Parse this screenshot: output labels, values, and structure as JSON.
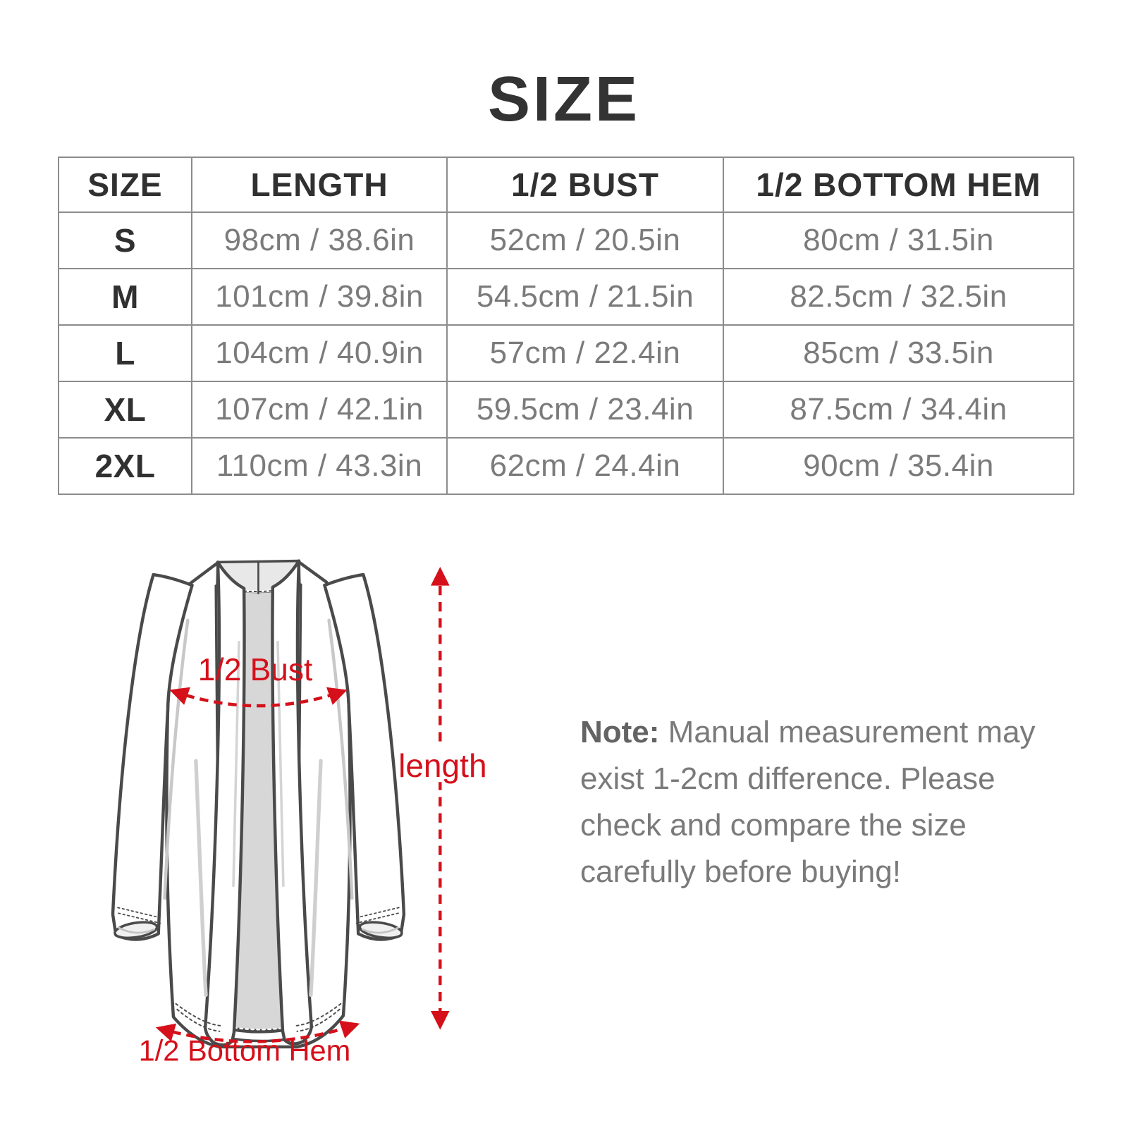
{
  "title": "SIZE",
  "table": {
    "headers": [
      "SIZE",
      "LENGTH",
      "1/2 BUST",
      "1/2 BOTTOM HEM"
    ],
    "rows": [
      {
        "size": "S",
        "length": "98cm / 38.6in",
        "bust": "52cm / 20.5in",
        "bottom_hem": "80cm / 31.5in"
      },
      {
        "size": "M",
        "length": "101cm / 39.8in",
        "bust": "54.5cm / 21.5in",
        "bottom_hem": "82.5cm / 32.5in"
      },
      {
        "size": "L",
        "length": "104cm / 40.9in",
        "bust": "57cm / 22.4in",
        "bottom_hem": "85cm / 33.5in"
      },
      {
        "size": "XL",
        "length": "107cm / 42.1in",
        "bust": "59.5cm / 23.4in",
        "bottom_hem": "87.5cm / 34.4in"
      },
      {
        "size": "2XL",
        "length": "110cm / 43.3in",
        "bust": "62cm / 24.4in",
        "bottom_hem": "90cm / 35.4in"
      }
    ]
  },
  "diagram": {
    "labels": {
      "bust": "1/2 Bust",
      "length": "length",
      "bottom_hem": "1/2 Bottom Hem"
    }
  },
  "note": {
    "prefix": "Note:",
    "lines": [
      " Manual measurement may",
      "exist 1-2cm difference. Please",
      "check and compare the size",
      "carefully before buying!"
    ]
  },
  "colors": {
    "accent_red": "#d5101a",
    "title_text": "#333333",
    "header_text": "#303030",
    "value_text": "#7b7b7b",
    "note_text": "#7a7a7a",
    "table_border": "#8c8c8c",
    "outline_gray": "#4a4a4a",
    "panel_gray": "#d7d7d7",
    "neckband_gray": "#e8e8e8"
  }
}
